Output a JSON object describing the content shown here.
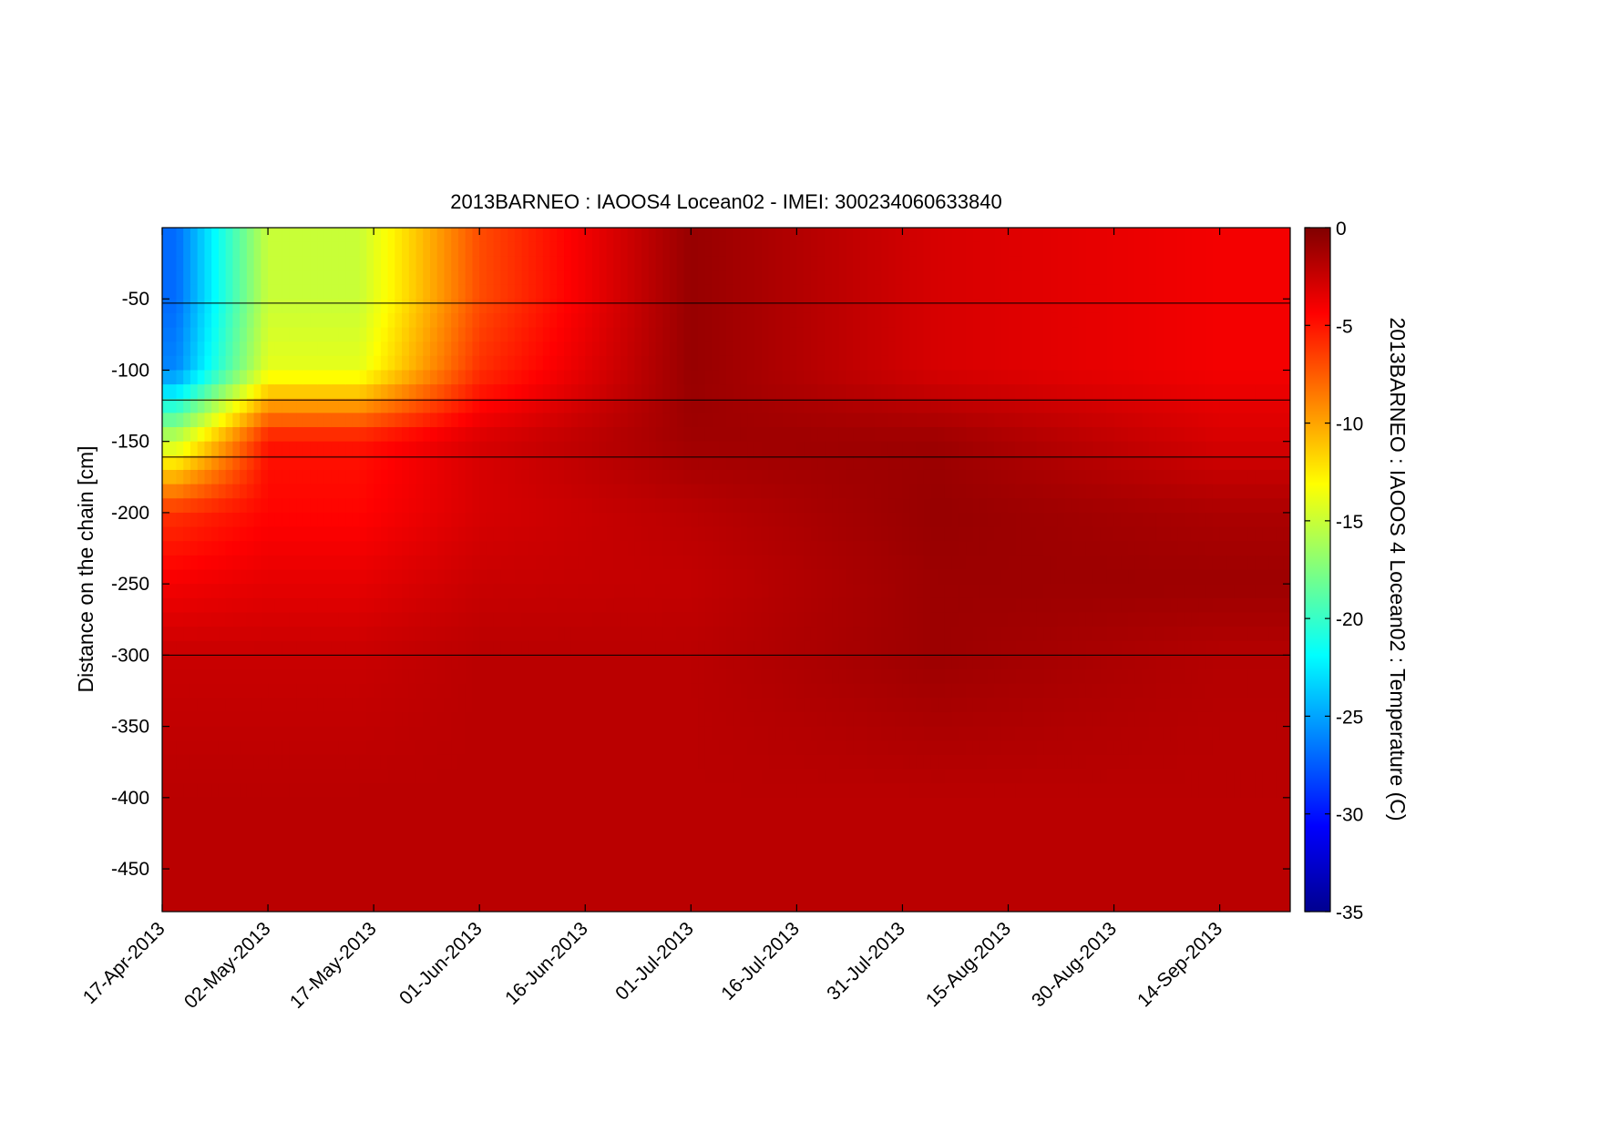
{
  "chart_data": {
    "type": "heatmap",
    "title": "2013BARNEO : IAOOS4  Locean02 - IMEI: 300234060633840",
    "xlabel": "",
    "ylabel": "Distance on the chain [cm]",
    "x_range": [
      "2013-04-17",
      "2013-09-24"
    ],
    "y_range": [
      -480,
      0
    ],
    "x_ticks": [
      "17-Apr-2013",
      "02-May-2013",
      "17-May-2013",
      "01-Jun-2013",
      "16-Jun-2013",
      "01-Jul-2013",
      "16-Jul-2013",
      "31-Jul-2013",
      "15-Aug-2013",
      "30-Aug-2013",
      "14-Sep-2013"
    ],
    "y_ticks": [
      -50,
      -100,
      -150,
      -200,
      -250,
      -300,
      -350,
      -400,
      -450
    ],
    "horizontal_lines_cm": [
      -53,
      -121,
      -161,
      -300
    ],
    "colorbar": {
      "label": "2013BARNEO : IAOOS 4  Locean02 : Temperature (C)",
      "range": [
        -35,
        0
      ],
      "ticks": [
        0,
        -5,
        -10,
        -15,
        -20,
        -25,
        -30,
        -35
      ],
      "colormap": "jet"
    },
    "temperature_profile_samples": [
      {
        "date": "2013-04-19",
        "depths_cm": [
          -50,
          -100,
          -150,
          -200,
          -250,
          -300,
          -400
        ],
        "temperature_c": [
          -27,
          -26,
          -15,
          -6,
          -4,
          -2.5,
          -2
        ]
      },
      {
        "date": "2013-05-02",
        "depths_cm": [
          -50,
          -100,
          -150,
          -200,
          -250,
          -300,
          -400
        ],
        "temperature_c": [
          -15,
          -14,
          -5,
          -4.5,
          -3.5,
          -2.5,
          -2
        ]
      },
      {
        "date": "2013-05-15",
        "depths_cm": [
          -50,
          -100,
          -150,
          -200,
          -250,
          -300,
          -400
        ],
        "temperature_c": [
          -15,
          -14,
          -5,
          -4.5,
          -3.5,
          -2.5,
          -2
        ]
      },
      {
        "date": "2013-06-01",
        "depths_cm": [
          -50,
          -100,
          -150,
          -200,
          -250,
          -300,
          -400
        ],
        "temperature_c": [
          -7,
          -6,
          -3,
          -3,
          -2.5,
          -2,
          -2
        ]
      },
      {
        "date": "2013-07-01",
        "depths_cm": [
          -50,
          -100,
          -150,
          -200,
          -250,
          -300,
          -400
        ],
        "temperature_c": [
          -0.8,
          -0.8,
          -1.1,
          -2,
          -2.3,
          -2,
          -2
        ]
      },
      {
        "date": "2013-08-05",
        "depths_cm": [
          -50,
          -100,
          -150,
          -200,
          -250,
          -300,
          -400
        ],
        "temperature_c": [
          -3,
          -3,
          -1,
          -0.8,
          -1,
          -1,
          -2
        ]
      },
      {
        "date": "2013-09-14",
        "depths_cm": [
          -50,
          -100,
          -150,
          -200,
          -250,
          -300,
          -400
        ],
        "temperature_c": [
          -4,
          -4,
          -3,
          -1.5,
          -1,
          -1.8,
          -2
        ]
      }
    ]
  }
}
